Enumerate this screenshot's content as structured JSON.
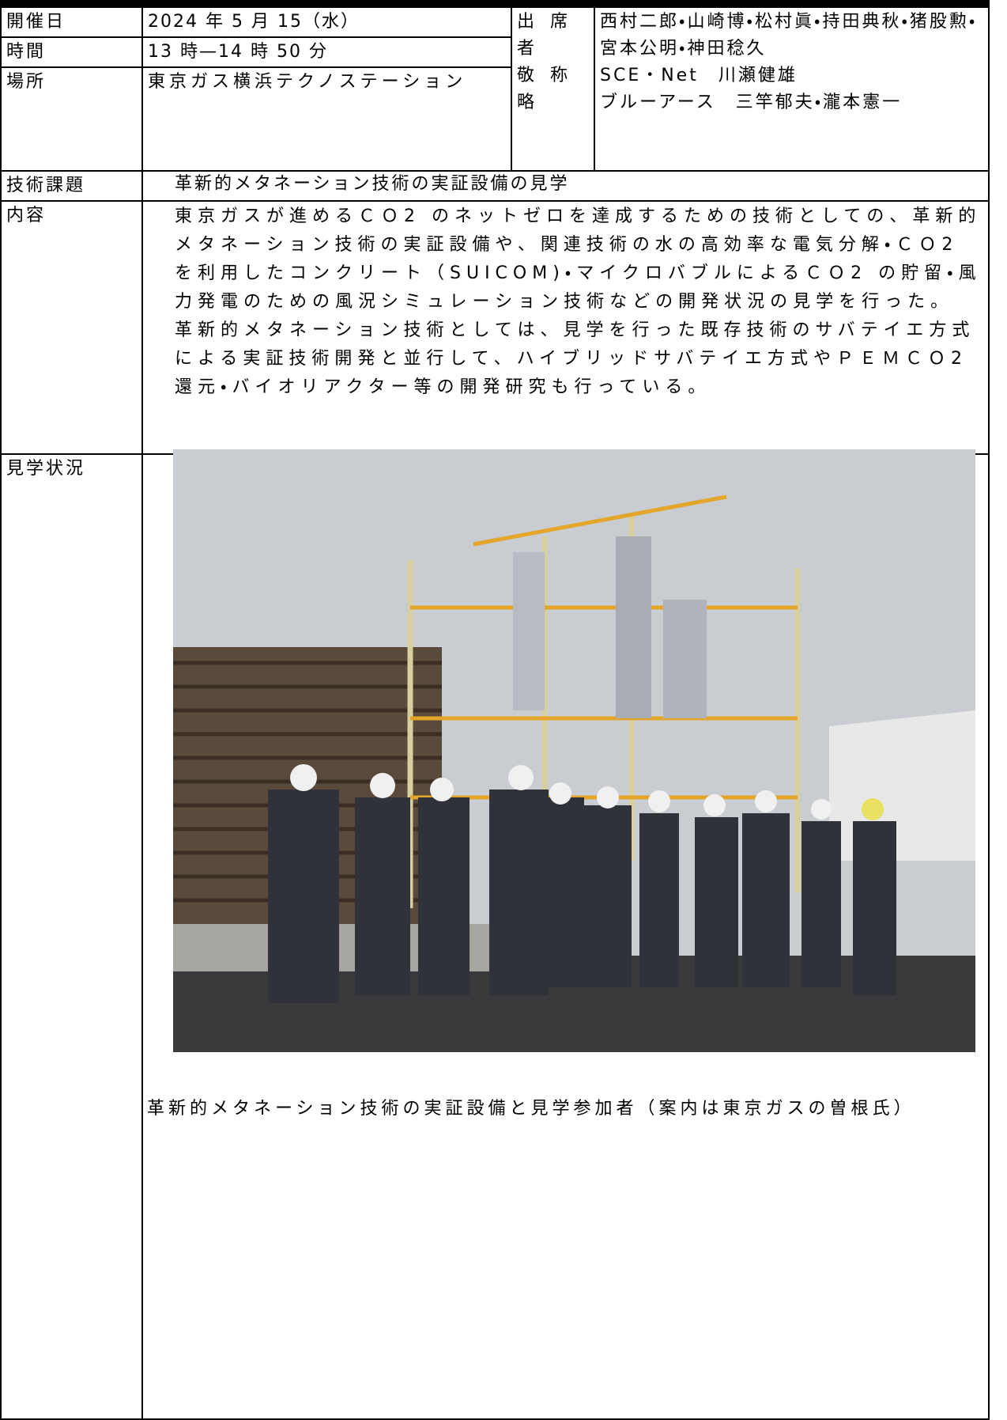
{
  "header": {
    "date_label": "開催日",
    "date": "2024 年 5 月 15（水）",
    "time_label": "時間",
    "time": "13 時—14 時 50 分",
    "place_label": "場所",
    "place": "東京ガス横浜テクノステーション",
    "attendees_label": [
      "出席者",
      "敬称略"
    ],
    "attendees": [
      "西村二郎・山崎博・松村眞・持田典秋・猪股勲・宮本公明・神田稔久",
      "SCE・Net　川瀬健雄",
      "ブルーアース　三竿郁夫・瀧本憲一"
    ]
  },
  "topic": {
    "label": "技術課題",
    "text": "革新的メタネーション技術の実証設備の見学"
  },
  "content": {
    "label": "内容",
    "paragraphs": [
      "東京ガスが進めるＣＯ2 のネットゼロを達成するための技術としての、革新的メタネーション技術の実証設備や、関連技術の水の高効率な電気分解・ＣＯ2 を利用したコンクリート（SUICOM)・マイクロバブルによるＣＯ2 の貯留・風力発電のための風況シミュレーション技術などの開発状況の見学を行った。",
      "革新的メタネーション技術としては、見学を行った既存技術のサバテイエ方式による実証技術開発と並行して、ハイブリッドサバテイエ方式やＰＥＭＣＯ2 還元・バイオリアクター等の開発研究も行っている。"
    ]
  },
  "tour": {
    "label": "見学状況",
    "caption": "革新的メタネーション技術の実証設備と見学参加者（案内は東京ガスの曽根氏）"
  }
}
